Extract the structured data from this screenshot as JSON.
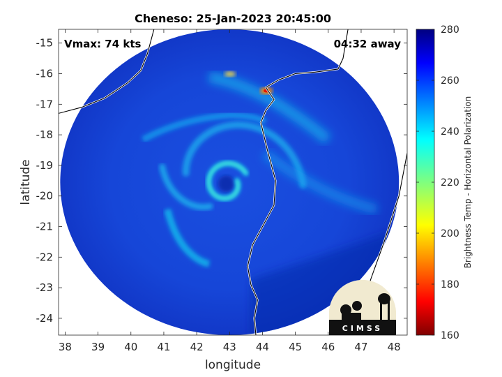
{
  "chart_data": {
    "type": "heatmap",
    "title": "Cheneso: 25-Jan-2023 20:45:00",
    "xlabel": "longitude",
    "ylabel": "latitude",
    "xlim": [
      37.8,
      48.4
    ],
    "ylim": [
      -24.55,
      -14.55
    ],
    "xticks": [
      38,
      39,
      40,
      41,
      42,
      43,
      44,
      45,
      46,
      47,
      48
    ],
    "yticks": [
      -15,
      -16,
      -17,
      -18,
      -19,
      -20,
      -21,
      -22,
      -23,
      -24
    ],
    "grid": false,
    "annotations": {
      "top_left": "Vmax: 74 kts",
      "top_right": "04:32 away"
    },
    "colorbar": {
      "label": "Brightness Temp - Horizontal Polarization",
      "range": [
        160,
        280
      ],
      "ticks": [
        280,
        260,
        240,
        220,
        200,
        180,
        160
      ],
      "colormap": "jet"
    },
    "storm_center": {
      "lon": 42.9,
      "lat": -19.6
    },
    "swath": {
      "center_lon": 43.0,
      "center_lat": -19.55,
      "radius_lon": 5.15,
      "radius_lat": 5.0
    },
    "coastline_madagascar": [
      [
        46.6,
        -14.55
      ],
      [
        46.45,
        -15.5
      ],
      [
        46.3,
        -15.85
      ],
      [
        45.6,
        -15.95
      ],
      [
        45.0,
        -16.0
      ],
      [
        44.5,
        -16.2
      ],
      [
        44.1,
        -16.45
      ],
      [
        44.35,
        -16.85
      ],
      [
        44.1,
        -17.2
      ],
      [
        43.95,
        -17.6
      ],
      [
        44.15,
        -18.5
      ],
      [
        44.4,
        -19.5
      ],
      [
        44.35,
        -20.3
      ],
      [
        44.0,
        -21.0
      ],
      [
        43.7,
        -21.6
      ],
      [
        43.55,
        -22.3
      ],
      [
        43.65,
        -22.9
      ],
      [
        43.85,
        -23.4
      ],
      [
        43.75,
        -24.0
      ],
      [
        43.8,
        -24.55
      ]
    ],
    "coastline_madagascar_east": [
      [
        48.4,
        -18.6
      ],
      [
        48.15,
        -20.0
      ],
      [
        47.7,
        -21.5
      ],
      [
        47.3,
        -22.7
      ],
      [
        47.0,
        -23.7
      ],
      [
        46.85,
        -24.55
      ]
    ],
    "coastline_mozambique": [
      [
        37.8,
        -17.3
      ],
      [
        38.5,
        -17.1
      ],
      [
        39.2,
        -16.8
      ],
      [
        39.9,
        -16.3
      ],
      [
        40.3,
        -15.9
      ],
      [
        40.5,
        -15.35
      ],
      [
        40.7,
        -14.55
      ]
    ]
  },
  "logo": {
    "text": "CIMSS"
  }
}
